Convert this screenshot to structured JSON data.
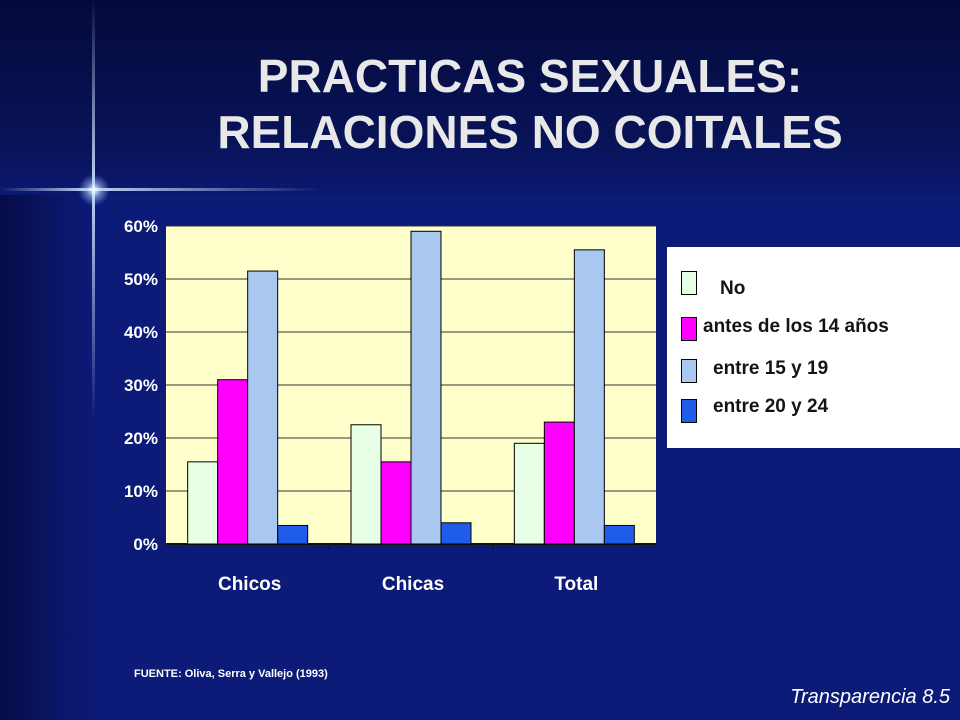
{
  "title_lines": [
    "PRACTICAS SEXUALES:",
    "RELACIONES NO COITALES"
  ],
  "source": "FUENTE: Oliva, Serra y Vallejo (1993)",
  "slide_label": "Transparencia 8.5",
  "colors": {
    "background": "#0c1a78",
    "plot_background": "#ffffcc",
    "no": "#e6ffe6",
    "antes": "#ff00ff",
    "entre_15_19": "#a8c8f0",
    "entre_20_24": "#1f5de8"
  },
  "chart_data": {
    "type": "bar",
    "title": "",
    "xlabel": "",
    "ylabel": "",
    "categories": [
      "Chicos",
      "Chicas",
      "Total"
    ],
    "ylim": [
      0,
      60
    ],
    "yticks": [
      "0%",
      "10%",
      "20%",
      "30%",
      "40%",
      "50%",
      "60%"
    ],
    "grid": true,
    "legend_position": "right",
    "series": [
      {
        "name": "No",
        "color": "#e6ffe6",
        "values": [
          15.5,
          22.5,
          19
        ]
      },
      {
        "name": "antes de los 14 años",
        "color": "#ff00ff",
        "values": [
          31,
          15.5,
          23
        ]
      },
      {
        "name": "entre 15 y 19",
        "color": "#a8c8f0",
        "values": [
          51.5,
          59,
          55.5
        ]
      },
      {
        "name": "entre 20 y 24",
        "color": "#1f5de8",
        "values": [
          3.5,
          4,
          3.5
        ]
      }
    ]
  }
}
